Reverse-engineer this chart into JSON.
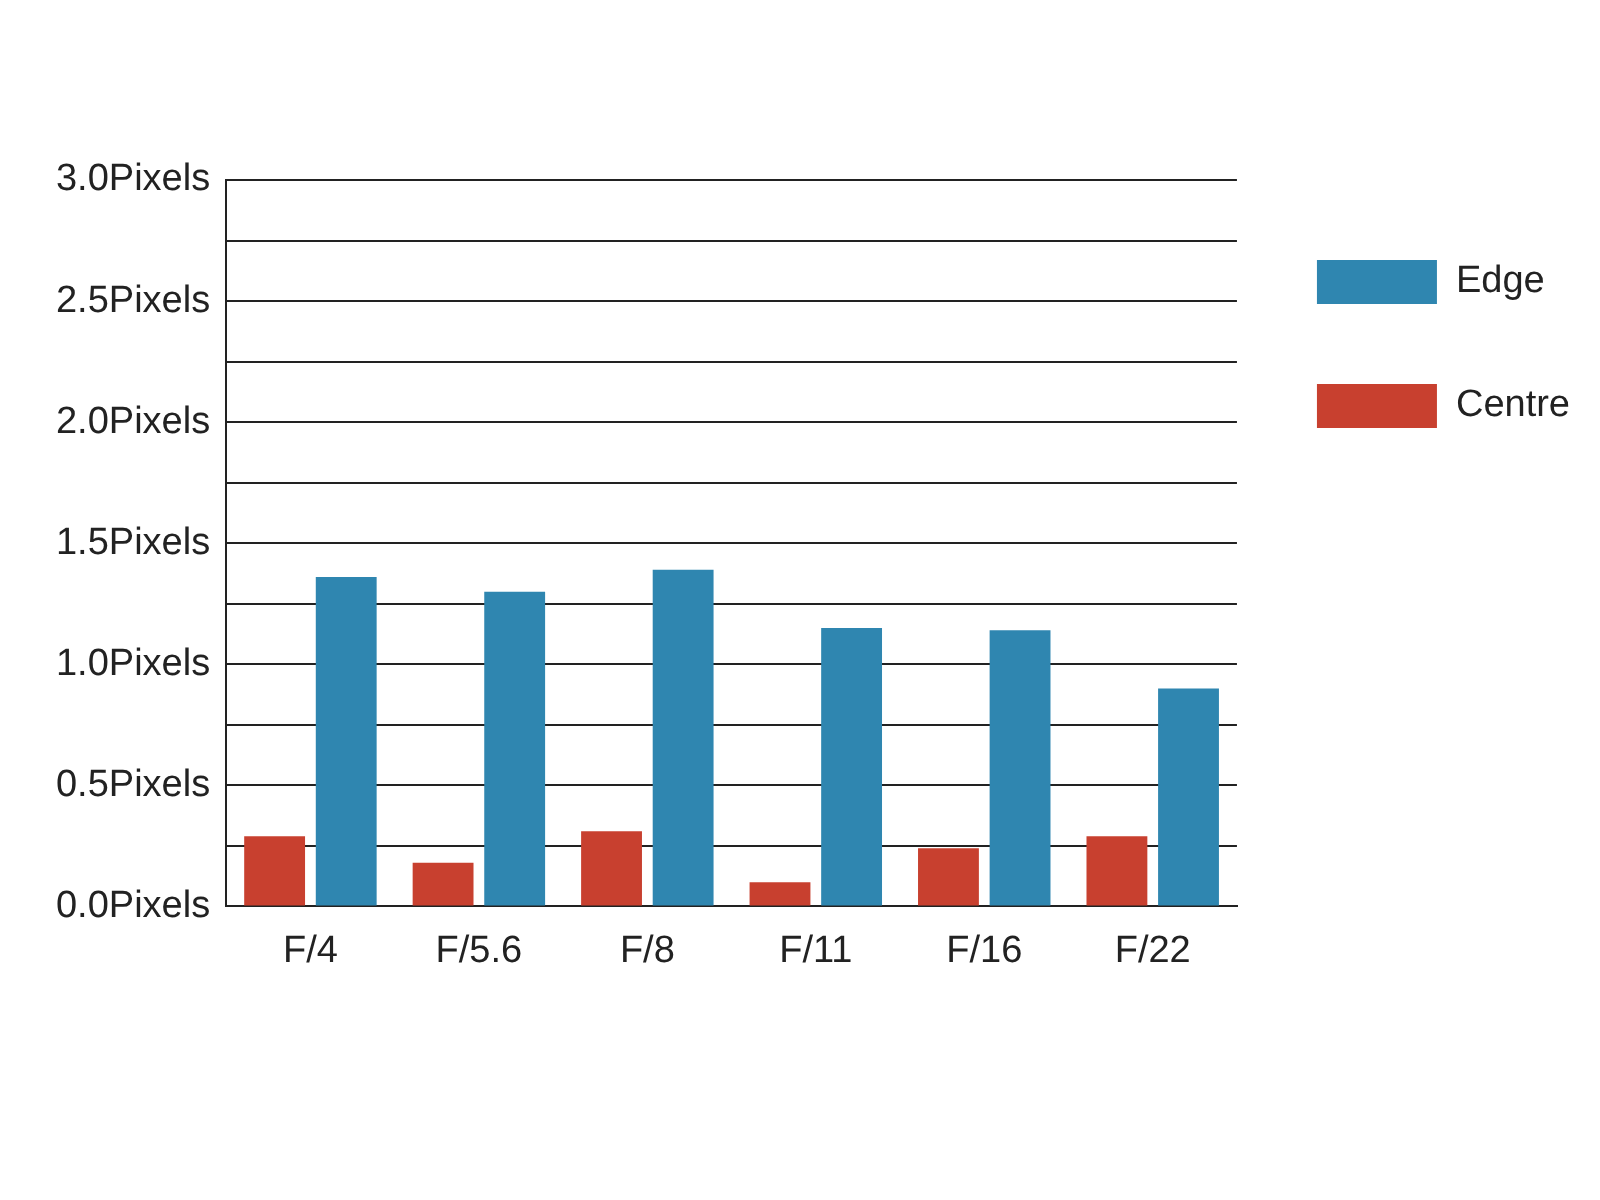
{
  "chart_data": {
    "type": "bar",
    "categories": [
      "F/4",
      "F/5.6",
      "F/8",
      "F/11",
      "F/16",
      "F/22"
    ],
    "series": [
      {
        "name": "Centre",
        "color": "#c8402f",
        "values": [
          0.29,
          0.18,
          0.31,
          0.1,
          0.24,
          0.29
        ]
      },
      {
        "name": "Edge",
        "color": "#2f86b0",
        "values": [
          1.36,
          1.3,
          1.39,
          1.15,
          1.14,
          0.9
        ]
      }
    ],
    "ylim": [
      0,
      3
    ],
    "yticks": [
      {
        "value": 0,
        "label": "0.0Pixels"
      },
      {
        "value": 0.25,
        "label": null
      },
      {
        "value": 0.5,
        "label": "0.5Pixels"
      },
      {
        "value": 0.75,
        "label": null
      },
      {
        "value": 1,
        "label": "1.0Pixels"
      },
      {
        "value": 1.25,
        "label": null
      },
      {
        "value": 1.5,
        "label": "1.5Pixels"
      },
      {
        "value": 1.75,
        "label": null
      },
      {
        "value": 2,
        "label": "2.0Pixels"
      },
      {
        "value": 2.25,
        "label": null
      },
      {
        "value": 2.5,
        "label": "2.5Pixels"
      },
      {
        "value": 2.75,
        "label": null
      },
      {
        "value": 3,
        "label": "3.0Pixels"
      }
    ],
    "grid": "y",
    "legend": "top right"
  }
}
